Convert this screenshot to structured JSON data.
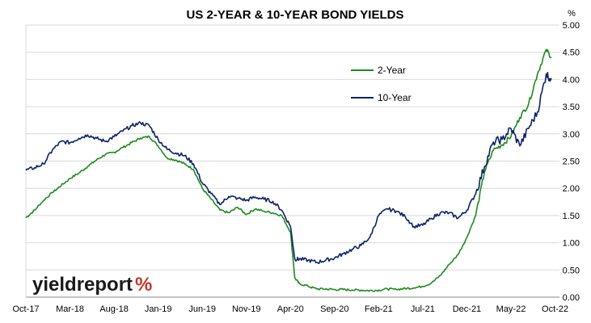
{
  "chart_data": {
    "type": "line",
    "title": "US 2-YEAR & 10-YEAR BOND YIELDS",
    "ylabel": "%",
    "ylim": [
      0,
      5
    ],
    "yticks": [
      "0.00",
      "0.50",
      "1.00",
      "1.50",
      "2.00",
      "2.50",
      "3.00",
      "3.50",
      "4.00",
      "4.50",
      "5.00"
    ],
    "xticks": [
      "Oct-17",
      "Mar-18",
      "Aug-18",
      "Jan-19",
      "Jun-19",
      "Nov-19",
      "Apr-20",
      "Sep-20",
      "Feb-21",
      "Jul-21",
      "Dec-21",
      "May-22",
      "Oct-22"
    ],
    "x_unit": "months since Oct-17",
    "xlim": [
      0,
      60.5
    ],
    "grid": "horizontal",
    "legend_position": "top-right",
    "series": [
      {
        "name": "2-Year",
        "color": "#1e8a1e",
        "points": [
          [
            0,
            1.46
          ],
          [
            1,
            1.6
          ],
          [
            2,
            1.78
          ],
          [
            3,
            1.92
          ],
          [
            4,
            2.05
          ],
          [
            5,
            2.18
          ],
          [
            6,
            2.28
          ],
          [
            7,
            2.4
          ],
          [
            8,
            2.52
          ],
          [
            9,
            2.62
          ],
          [
            10,
            2.66
          ],
          [
            11,
            2.75
          ],
          [
            12,
            2.84
          ],
          [
            13,
            2.92
          ],
          [
            14,
            2.95
          ],
          [
            15,
            2.78
          ],
          [
            16,
            2.56
          ],
          [
            17,
            2.52
          ],
          [
            18,
            2.45
          ],
          [
            19,
            2.35
          ],
          [
            20,
            2.0
          ],
          [
            21,
            1.8
          ],
          [
            22,
            1.6
          ],
          [
            23,
            1.55
          ],
          [
            24,
            1.65
          ],
          [
            25,
            1.52
          ],
          [
            26,
            1.62
          ],
          [
            27,
            1.58
          ],
          [
            28,
            1.55
          ],
          [
            29,
            1.5
          ],
          [
            30,
            1.2
          ],
          [
            30.5,
            0.35
          ],
          [
            31,
            0.25
          ],
          [
            32,
            0.2
          ],
          [
            33,
            0.15
          ],
          [
            34,
            0.15
          ],
          [
            35,
            0.14
          ],
          [
            36,
            0.14
          ],
          [
            37,
            0.13
          ],
          [
            38,
            0.13
          ],
          [
            39,
            0.12
          ],
          [
            40,
            0.13
          ],
          [
            41,
            0.15
          ],
          [
            42,
            0.14
          ],
          [
            43,
            0.16
          ],
          [
            44,
            0.17
          ],
          [
            45,
            0.2
          ],
          [
            46,
            0.26
          ],
          [
            47,
            0.4
          ],
          [
            48,
            0.6
          ],
          [
            49,
            0.78
          ],
          [
            50,
            1.1
          ],
          [
            51,
            1.5
          ],
          [
            52,
            2.3
          ],
          [
            53,
            2.7
          ],
          [
            54,
            2.8
          ],
          [
            55,
            2.95
          ],
          [
            56,
            3.3
          ],
          [
            57,
            3.55
          ],
          [
            58,
            4.1
          ],
          [
            59,
            4.55
          ],
          [
            59.6,
            4.4
          ]
        ]
      },
      {
        "name": "10-Year",
        "color": "#0d2266",
        "points": [
          [
            0,
            2.33
          ],
          [
            1,
            2.38
          ],
          [
            2,
            2.45
          ],
          [
            3,
            2.7
          ],
          [
            4,
            2.86
          ],
          [
            5,
            2.84
          ],
          [
            6,
            2.92
          ],
          [
            7,
            2.98
          ],
          [
            8,
            2.92
          ],
          [
            9,
            2.86
          ],
          [
            10,
            2.95
          ],
          [
            11,
            3.05
          ],
          [
            12,
            3.15
          ],
          [
            13,
            3.2
          ],
          [
            14,
            3.15
          ],
          [
            15,
            2.9
          ],
          [
            16,
            2.72
          ],
          [
            17,
            2.65
          ],
          [
            18,
            2.6
          ],
          [
            19,
            2.45
          ],
          [
            20,
            2.1
          ],
          [
            21,
            1.9
          ],
          [
            22,
            1.7
          ],
          [
            23,
            1.85
          ],
          [
            24,
            1.82
          ],
          [
            25,
            1.78
          ],
          [
            26,
            1.84
          ],
          [
            27,
            1.8
          ],
          [
            28,
            1.76
          ],
          [
            29,
            1.6
          ],
          [
            30,
            1.3
          ],
          [
            30.5,
            0.7
          ],
          [
            31,
            0.7
          ],
          [
            32,
            0.68
          ],
          [
            33,
            0.64
          ],
          [
            34,
            0.68
          ],
          [
            35,
            0.72
          ],
          [
            36,
            0.8
          ],
          [
            37,
            0.88
          ],
          [
            38,
            0.95
          ],
          [
            39,
            1.1
          ],
          [
            40,
            1.5
          ],
          [
            41,
            1.62
          ],
          [
            42,
            1.58
          ],
          [
            43,
            1.48
          ],
          [
            44,
            1.3
          ],
          [
            45,
            1.32
          ],
          [
            46,
            1.45
          ],
          [
            47,
            1.55
          ],
          [
            48,
            1.55
          ],
          [
            49,
            1.45
          ],
          [
            50,
            1.6
          ],
          [
            51,
            1.9
          ],
          [
            52,
            2.4
          ],
          [
            53,
            2.85
          ],
          [
            54,
            2.9
          ],
          [
            55,
            3.1
          ],
          [
            56,
            2.78
          ],
          [
            57,
            3.1
          ],
          [
            58,
            3.4
          ],
          [
            59,
            4.1
          ],
          [
            59.6,
            4.0
          ]
        ]
      }
    ]
  },
  "branding": {
    "logo_word": "yieldreport",
    "logo_symbol": "%"
  }
}
